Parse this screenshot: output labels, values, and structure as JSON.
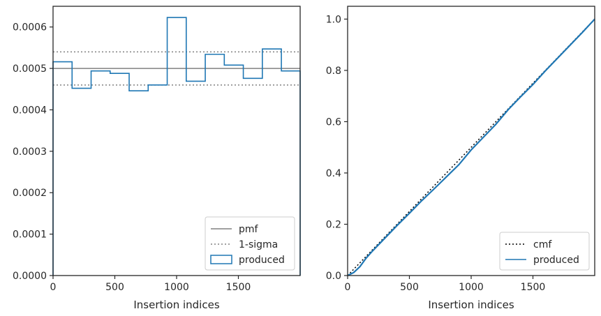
{
  "chart_data": [
    {
      "type": "step",
      "xlabel": "Insertion indices",
      "ylabel": "",
      "xlim": [
        0,
        2000
      ],
      "ylim": [
        0,
        0.00065
      ],
      "xticks": [
        0,
        500,
        1000,
        1500
      ],
      "xtick_labels": [
        "0",
        "500",
        "1000",
        "1500"
      ],
      "yticks": [
        0,
        0.0001,
        0.0002,
        0.0003,
        0.0004,
        0.0005,
        0.0006
      ],
      "ytick_labels": [
        "0.0000",
        "0.0001",
        "0.0002",
        "0.0003",
        "0.0004",
        "0.0005",
        "0.0006"
      ],
      "grid": false,
      "legend_position": "lower-right",
      "series": [
        {
          "name": "pmf",
          "kind": "hline",
          "y": 0.0005,
          "color": "#808080",
          "style": "solid"
        },
        {
          "name": "1-sigma",
          "kind": "hlines",
          "y": [
            0.00046,
            0.00054
          ],
          "color": "#808080",
          "style": "dotted"
        },
        {
          "name": "produced",
          "kind": "hist-step",
          "color": "#1f77b4",
          "bin_edges": [
            0,
            154,
            308,
            462,
            616,
            770,
            924,
            1078,
            1232,
            1386,
            1540,
            1694,
            1848,
            2000
          ],
          "values": [
            0.000516,
            0.000452,
            0.000494,
            0.000488,
            0.000446,
            0.00046,
            0.000623,
            0.000469,
            0.000534,
            0.000508,
            0.000476,
            0.000547,
            0.000494
          ]
        }
      ]
    },
    {
      "type": "line",
      "xlabel": "Insertion indices",
      "ylabel": "",
      "xlim": [
        0,
        2000
      ],
      "ylim": [
        0,
        1.05
      ],
      "xticks": [
        0,
        500,
        1000,
        1500
      ],
      "xtick_labels": [
        "0",
        "500",
        "1000",
        "1500"
      ],
      "yticks": [
        0,
        0.2,
        0.4,
        0.6,
        0.8,
        1.0
      ],
      "ytick_labels": [
        "0.0",
        "0.2",
        "0.4",
        "0.6",
        "0.8",
        "1.0"
      ],
      "grid": false,
      "legend_position": "lower-right",
      "series": [
        {
          "name": "cmf",
          "color": "#000000",
          "style": "dotted",
          "x": [
            0,
            2000
          ],
          "y": [
            0,
            1
          ]
        },
        {
          "name": "produced",
          "color": "#1f77b4",
          "style": "solid",
          "x": [
            0,
            50,
            100,
            150,
            200,
            300,
            400,
            500,
            600,
            700,
            800,
            900,
            1000,
            1100,
            1200,
            1300,
            1400,
            1500,
            1600,
            1700,
            1800,
            1900,
            2000
          ],
          "y": [
            0,
            0.012,
            0.035,
            0.068,
            0.095,
            0.145,
            0.195,
            0.243,
            0.292,
            0.338,
            0.385,
            0.432,
            0.49,
            0.54,
            0.59,
            0.647,
            0.697,
            0.745,
            0.798,
            0.848,
            0.898,
            0.948,
            1.0
          ]
        }
      ]
    }
  ]
}
